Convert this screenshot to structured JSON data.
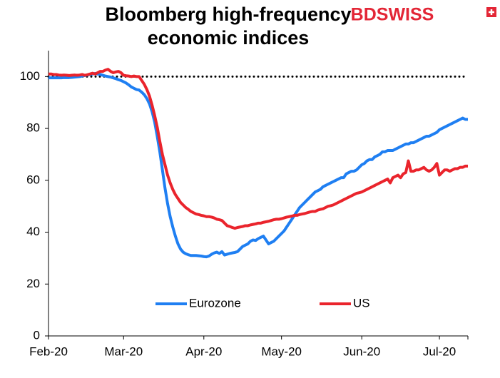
{
  "chart_data": {
    "type": "line",
    "title": "Bloomberg high-frequency economic indices",
    "logo": "BDSWISS",
    "categories": [
      "Feb-20",
      null,
      null,
      null,
      null,
      null,
      null,
      null,
      null,
      null,
      null,
      null,
      null,
      null,
      null,
      null,
      null,
      null,
      null,
      null,
      null,
      null,
      null,
      null,
      null,
      null,
      null,
      null,
      null,
      "Mar-20",
      null,
      null,
      null,
      null,
      null,
      null,
      null,
      null,
      null,
      null,
      null,
      null,
      null,
      null,
      null,
      null,
      null,
      null,
      null,
      null,
      null,
      null,
      null,
      null,
      null,
      null,
      null,
      null,
      null,
      null,
      "Apr-20",
      null,
      null,
      null,
      null,
      null,
      null,
      null,
      null,
      null,
      null,
      null,
      null,
      null,
      null,
      null,
      null,
      null,
      null,
      null,
      null,
      null,
      null,
      null,
      null,
      null,
      null,
      null,
      null,
      null,
      "May-20",
      null,
      null,
      null,
      null,
      null,
      null,
      null,
      null,
      null,
      null,
      null,
      null,
      null,
      null,
      null,
      null,
      null,
      null,
      null,
      null,
      null,
      null,
      null,
      null,
      null,
      null,
      null,
      null,
      null,
      null,
      "Jun-20",
      null,
      null,
      null,
      null,
      null,
      null,
      null,
      null,
      null,
      null,
      null,
      null,
      null,
      null,
      null,
      null,
      null,
      null,
      null,
      null,
      null,
      null,
      null,
      null,
      null,
      null,
      null,
      null,
      null,
      "Jul-20",
      null,
      null,
      null,
      null,
      null,
      null,
      null,
      null,
      null,
      null,
      null
    ],
    "series": [
      {
        "name": "Eurozone",
        "color": "#1f7ff2",
        "values": [
          99.5,
          99.5,
          99.5,
          99.5,
          99.5,
          99.5,
          99.6,
          99.6,
          99.6,
          99.7,
          99.8,
          99.9,
          100,
          100.2,
          100.4,
          100.6,
          100.8,
          101,
          101.2,
          101,
          100.8,
          100.5,
          100.2,
          100,
          99.8,
          99.5,
          99.2,
          98.8,
          98.5,
          98,
          97.5,
          96.8,
          96,
          95.5,
          95,
          94.8,
          94,
          93,
          91.5,
          89.5,
          86.5,
          82.5,
          77,
          71,
          64,
          57,
          51,
          46,
          42,
          38.5,
          35.5,
          33.5,
          32.3,
          31.7,
          31.3,
          31,
          31,
          31,
          30.9,
          30.8,
          30.6,
          30.5,
          30.8,
          31.5,
          32,
          32.3,
          31.8,
          32.5,
          31.2,
          31.5,
          31.8,
          32,
          32.2,
          32.5,
          33.5,
          34.5,
          35,
          35.5,
          36.5,
          37,
          36.8,
          37.5,
          38,
          38.5,
          37,
          35.5,
          36,
          36.5,
          37.5,
          38.5,
          39.5,
          40.5,
          42,
          43.5,
          45,
          46.5,
          48,
          49.5,
          50.5,
          51.5,
          52.5,
          53.5,
          54.5,
          55.5,
          56,
          56.5,
          57.5,
          58,
          58.5,
          59,
          59.5,
          60,
          60.5,
          61,
          61,
          62.5,
          63,
          63.5,
          63.5,
          64,
          65,
          66,
          66.5,
          67.5,
          68,
          68,
          69,
          69.5,
          70,
          71,
          71,
          71.5,
          71.5,
          71.5,
          72,
          72.5,
          73,
          73.5,
          74,
          74,
          74.5,
          74.5,
          75,
          75.5,
          76,
          76.5,
          77,
          77,
          77.5,
          78,
          78.5,
          79.5,
          80,
          80.5,
          81,
          81.5,
          82,
          82.5,
          83,
          83.5,
          84,
          83.5,
          83.5
        ]
      },
      {
        "name": "US",
        "color": "#ea242c",
        "values": [
          101,
          101,
          100.8,
          100.8,
          100.6,
          100.5,
          100.6,
          100.5,
          100.4,
          100.5,
          100.6,
          100.5,
          100.6,
          100.8,
          100.5,
          100.7,
          101,
          101.3,
          101,
          101.5,
          102,
          102,
          102.5,
          102.8,
          102,
          101.5,
          101.8,
          102,
          101.5,
          100.5,
          100.3,
          100.2,
          100,
          100.2,
          100,
          100,
          98.5,
          97,
          95,
          92.5,
          89,
          85,
          80.5,
          75,
          70,
          66,
          62,
          59,
          56.5,
          54.5,
          53,
          51.5,
          50.5,
          49.5,
          48.8,
          48,
          47.5,
          47,
          46.8,
          46.5,
          46.3,
          46,
          46,
          45.8,
          45.5,
          45,
          44.8,
          44.5,
          43.5,
          42.5,
          42.2,
          41.8,
          41.5,
          41.8,
          42,
          42.2,
          42.5,
          42.5,
          42.8,
          43,
          43.2,
          43.5,
          43.5,
          43.8,
          44,
          44.2,
          44.5,
          44.8,
          45,
          45,
          45.2,
          45.5,
          45.8,
          46,
          46.2,
          46.5,
          46.5,
          46.8,
          47,
          47.2,
          47.5,
          47.8,
          48,
          48,
          48.5,
          48.8,
          49,
          49.5,
          50,
          50.2,
          50.5,
          51,
          51.5,
          52,
          52.5,
          53,
          53.5,
          54,
          54.5,
          55,
          55.2,
          55.5,
          56,
          56.5,
          57,
          57.5,
          58,
          58.5,
          59,
          59.5,
          60,
          60.5,
          59,
          61,
          61.5,
          62,
          61,
          62.5,
          63,
          67.5,
          63.5,
          63.5,
          64,
          64,
          64.5,
          65,
          64,
          63.5,
          64,
          65,
          66.5,
          62,
          63,
          64,
          64,
          63.5,
          64,
          64.5,
          64.5,
          65,
          65,
          65.5,
          65.5
        ]
      }
    ],
    "reference_line": 100,
    "ylim": [
      0,
      110
    ],
    "yticks": [
      0,
      20,
      40,
      60,
      80,
      100
    ],
    "grid": false,
    "legend": "bottom"
  }
}
